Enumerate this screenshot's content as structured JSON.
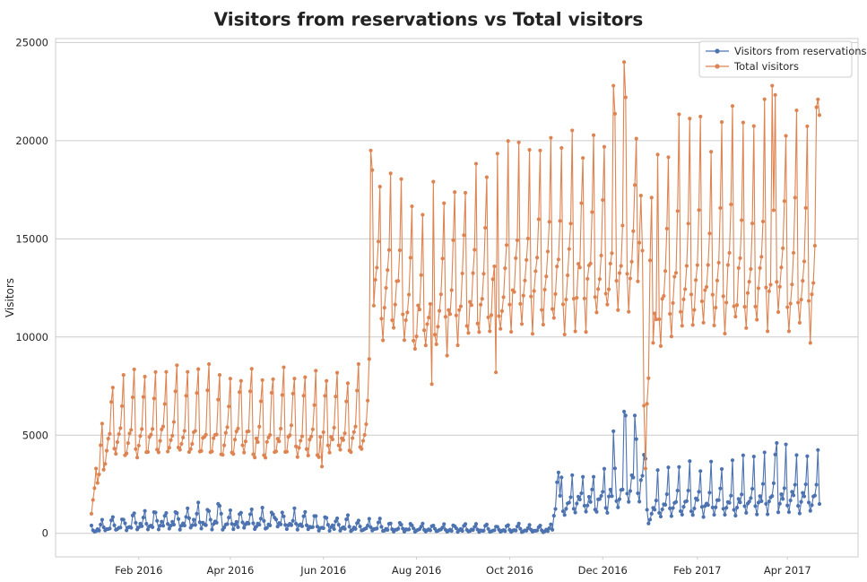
{
  "chart_data": {
    "type": "line",
    "title": "Visitors from reservations vs Total visitors",
    "xlabel": "",
    "ylabel": "Visitors",
    "ylim": [
      -1200,
      25200
    ],
    "yticks": [
      0,
      5000,
      10000,
      15000,
      20000,
      25000
    ],
    "xticks": [
      "Feb 2016",
      "Apr 2016",
      "Jun 2016",
      "Aug 2016",
      "Oct 2016",
      "Dec 2016",
      "Feb 2017",
      "Apr 2017"
    ],
    "grid": "horizontal",
    "legend_position": "top-right",
    "x_start": "2016-01-01",
    "x_end": "2017-04-22",
    "series": [
      {
        "name": "Visitors from reservations",
        "color": "#4c72b0",
        "segments": [
          {
            "start": "2016-01-01",
            "end": "2016-10-29",
            "weekly": [
              120,
              200,
              260,
              220,
              500,
              650,
              300
            ],
            "base": [
              150,
              260,
              330,
              400,
              420,
              480,
              520,
              550,
              560,
              600,
              620,
              600,
              560,
              540,
              530,
              520,
              510,
              500,
              480,
              470,
              460,
              420,
              380,
              350,
              320,
              300,
              280,
              260,
              250,
              240,
              230,
              220,
              210,
              200,
              195,
              190,
              185,
              180,
              180,
              175,
              175,
              170,
              170,
              165
            ],
            "noise": 0.25,
            "spikes": [
              [
                "2016-03-17",
                1200
              ],
              [
                "2016-03-24",
                1500
              ],
              [
                "2016-03-25",
                1400
              ],
              [
                "2016-03-26",
                1000
              ],
              [
                "2016-04-30",
                800
              ],
              [
                "2016-05-01",
                700
              ]
            ]
          },
          {
            "start": "2016-10-30",
            "end": "2016-12-31",
            "weekly": [
              900,
              1300,
              1500,
              1400,
              1700,
              2600,
              1100
            ],
            "base": [
              1.0,
              1.05,
              1.1,
              1.15,
              1.2,
              1.3,
              1.4,
              1.7,
              2.0,
              1.9
            ],
            "noise": 0.12,
            "spikes": [
              [
                "2016-11-01",
                2600
              ],
              [
                "2016-11-02",
                3100
              ],
              [
                "2016-12-08",
                5200
              ],
              [
                "2016-12-15",
                6200
              ],
              [
                "2016-12-16",
                6000
              ],
              [
                "2016-12-22",
                6000
              ],
              [
                "2016-12-23",
                4800
              ],
              [
                "2016-12-28",
                4000
              ],
              [
                "2016-12-29",
                3800
              ],
              [
                "2016-12-30",
                1200
              ],
              [
                "2016-12-31",
                500
              ]
            ]
          },
          {
            "start": "2017-01-01",
            "end": "2017-04-22",
            "weekly": [
              900,
              1300,
              1600,
              1500,
              2000,
              3300,
              1200
            ],
            "base": [
              0.8,
              0.95,
              1.0,
              1.0,
              1.05,
              1.0,
              1.05,
              1.05,
              1.1,
              1.1,
              1.15,
              1.2,
              1.25,
              1.2,
              1.2,
              1.25
            ],
            "noise": 0.1,
            "spikes": [
              [
                "2017-03-25",
                4600
              ]
            ]
          }
        ]
      },
      {
        "name": "Total visitors",
        "color": "#dd8452",
        "segments": [
          {
            "start": "2016-01-01",
            "end": "2016-01-14",
            "weekly": [
              4000,
              4600,
              4900,
              5100,
              6700,
              7400,
              3900
            ],
            "base": [
              0.25,
              0.45,
              0.6,
              0.8,
              0.95,
              1.0
            ],
            "noise": 0.05,
            "spikes": [
              [
                "2016-01-01",
                1000
              ],
              [
                "2016-01-02",
                1700
              ],
              [
                "2016-01-03",
                2300
              ],
              [
                "2016-01-04",
                3300
              ]
            ]
          },
          {
            "start": "2016-01-15",
            "end": "2016-07-01",
            "weekly": [
              4000,
              4600,
              4900,
              5200,
              6800,
              8000,
              4200
            ],
            "base": [
              0.98,
              1.0,
              1.02,
              1.0,
              1.04,
              1.02,
              1.05,
              1.03,
              1.0,
              1.02,
              1.01,
              1.0,
              1.03,
              1.0,
              0.98,
              1.0,
              1.02,
              1.0,
              1.01,
              1.0,
              1.02,
              1.03,
              1.0,
              1.04,
              1.05
            ],
            "noise": 0.06,
            "spikes": [
              [
                "2016-05-31",
                3400
              ]
            ]
          },
          {
            "start": "2016-07-02",
            "end": "2016-12-24",
            "weekly": [
              10200,
              11800,
              12600,
              13300,
              15300,
              19000,
              11400
            ],
            "base": [
              1.0,
              0.97,
              0.98,
              0.96,
              0.88,
              0.9,
              0.92,
              0.93,
              0.95,
              0.96,
              0.97,
              0.98,
              1.0,
              1.01,
              1.02,
              1.02,
              1.03,
              1.03,
              1.04,
              1.05,
              1.06,
              1.08,
              1.12,
              1.14,
              1.1
            ],
            "noise": 0.05,
            "spikes": [
              [
                "2016-07-02",
                19500
              ],
              [
                "2016-07-03",
                18500
              ],
              [
                "2016-08-11",
                7600
              ],
              [
                "2016-09-22",
                8200
              ],
              [
                "2016-12-08",
                22800
              ],
              [
                "2016-12-15",
                24000
              ],
              [
                "2016-12-23",
                20100
              ]
            ]
          },
          {
            "start": "2016-12-25",
            "end": "2017-01-05",
            "weekly": [
              4200,
              4200,
              4200,
              4200,
              4200,
              4200,
              4200
            ],
            "base": [
              1.0
            ],
            "noise": 0.0,
            "spikes": [
              [
                "2016-12-25",
                14800
              ],
              [
                "2016-12-26",
                17200
              ],
              [
                "2016-12-27",
                14400
              ],
              [
                "2016-12-28",
                6500
              ],
              [
                "2016-12-29",
                3300
              ],
              [
                "2016-12-30",
                6600
              ],
              [
                "2016-12-31",
                7900
              ],
              [
                "2017-01-01",
                13900
              ],
              [
                "2017-01-02",
                17100
              ],
              [
                "2017-01-03",
                9700
              ],
              [
                "2017-01-04",
                11200
              ],
              [
                "2017-01-05",
                10900
              ]
            ]
          },
          {
            "start": "2017-01-06",
            "end": "2017-04-22",
            "weekly": [
              10300,
              11800,
              12700,
              13400,
              15700,
              20400,
              11700
            ],
            "base": [
              0.96,
              0.98,
              1.0,
              1.0,
              1.01,
              1.0,
              1.02,
              1.03,
              1.0,
              1.02,
              1.04,
              1.05,
              1.03,
              1.04,
              1.05,
              1.06
            ],
            "noise": 0.05,
            "spikes": [
              [
                "2017-03-22",
                22800
              ],
              [
                "2017-04-16",
                9700
              ],
              [
                "2017-04-20",
                21700
              ],
              [
                "2017-04-22",
                21300
              ]
            ]
          }
        ]
      }
    ]
  }
}
